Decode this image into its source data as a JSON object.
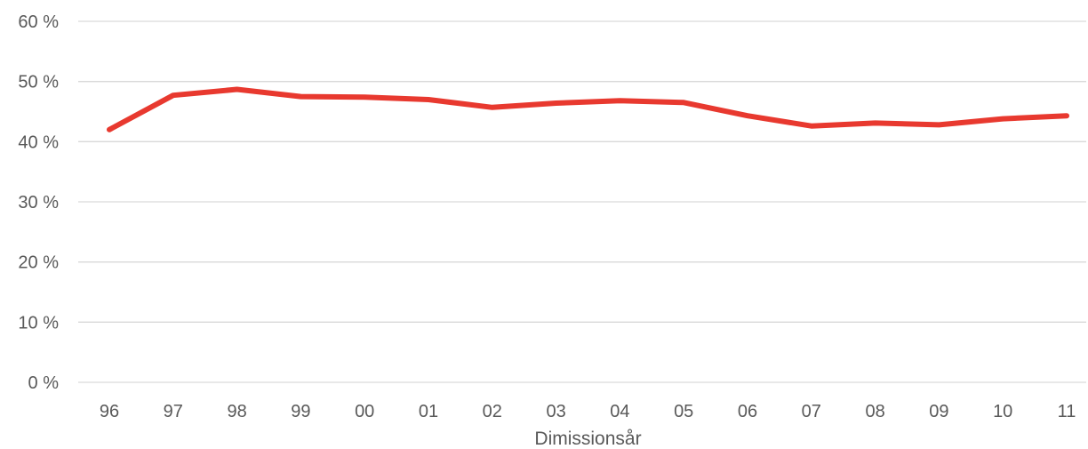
{
  "chart_data": {
    "type": "line",
    "categories": [
      "96",
      "97",
      "98",
      "99",
      "00",
      "01",
      "02",
      "03",
      "04",
      "05",
      "06",
      "07",
      "08",
      "09",
      "10",
      "11"
    ],
    "series": [
      {
        "values": [
          42.0,
          47.7,
          48.7,
          47.5,
          47.4,
          47.0,
          45.7,
          46.4,
          46.8,
          46.5,
          44.3,
          42.6,
          43.1,
          42.8,
          43.8,
          44.3
        ],
        "color": "#e8392f"
      }
    ],
    "y_ticks": [
      "0 %",
      "10 %",
      "20 %",
      "30 %",
      "40 %",
      "50 %",
      "60 %"
    ],
    "ylim": [
      0,
      60
    ],
    "xlabel": "Dimissionsår",
    "ylabel": "",
    "grid": true
  }
}
